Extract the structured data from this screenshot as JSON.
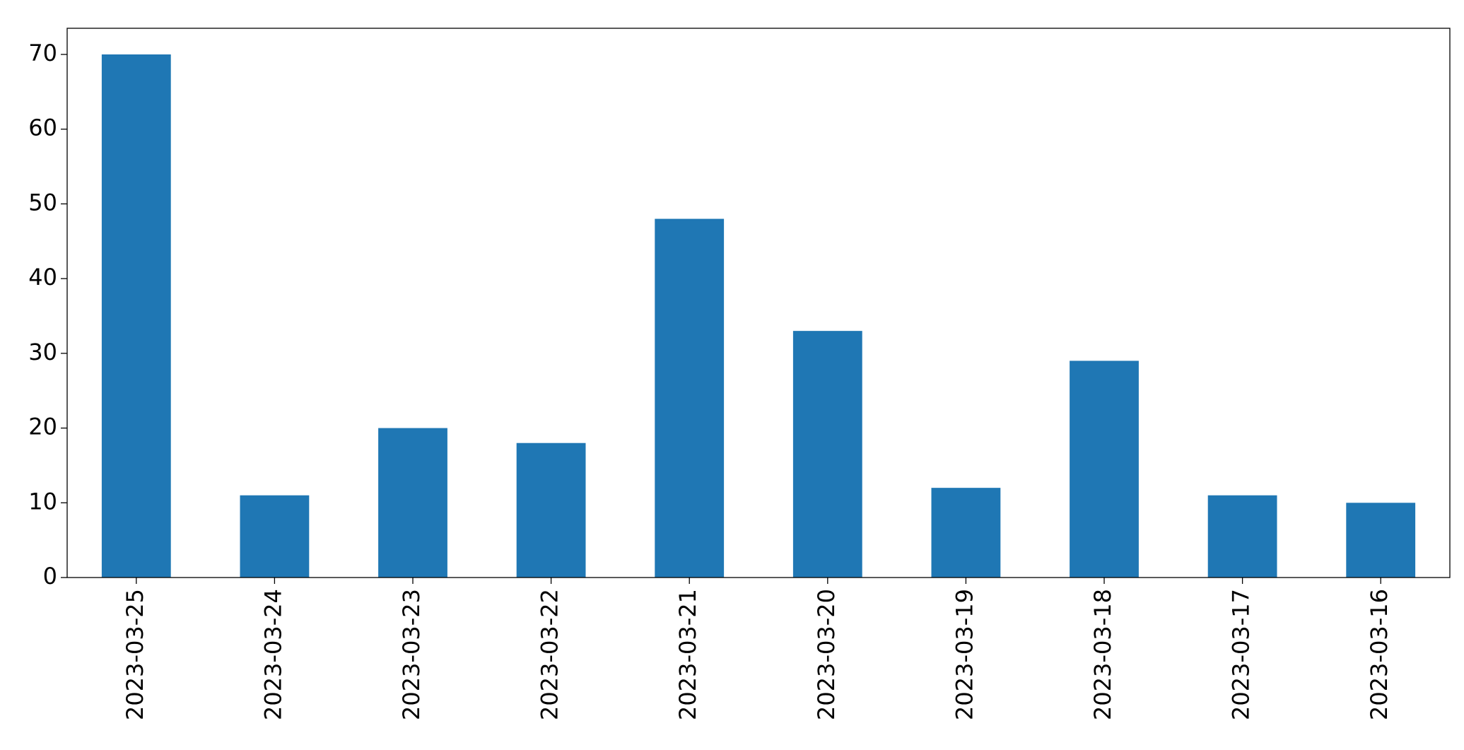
{
  "chart_data": {
    "type": "bar",
    "categories": [
      "2023-03-25",
      "2023-03-24",
      "2023-03-23",
      "2023-03-22",
      "2023-03-21",
      "2023-03-20",
      "2023-03-19",
      "2023-03-18",
      "2023-03-17",
      "2023-03-16"
    ],
    "values": [
      70,
      11,
      20,
      18,
      48,
      33,
      12,
      29,
      11,
      10
    ],
    "color": "#1f77b4",
    "ylim": [
      0,
      73.5
    ],
    "yticks": [
      0,
      10,
      20,
      30,
      40,
      50,
      60,
      70
    ],
    "grid": false
  }
}
